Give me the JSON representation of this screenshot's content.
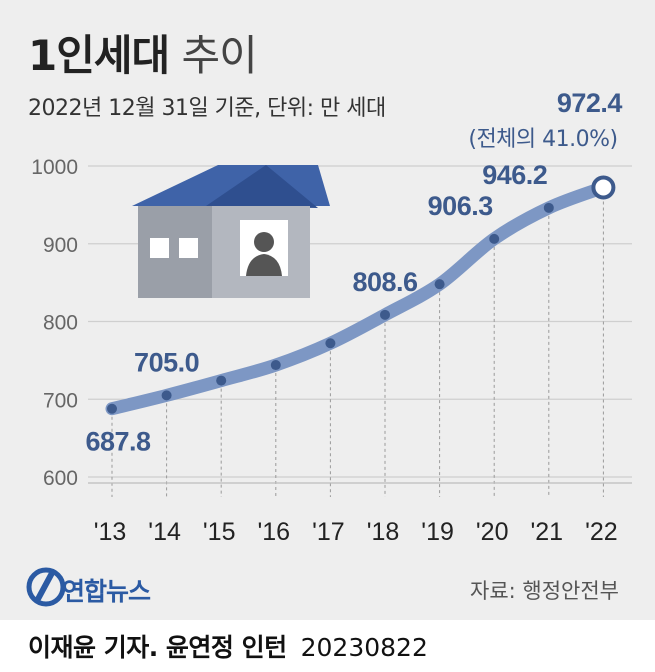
{
  "header": {
    "title_bold": "1인세대",
    "title_rest": "추이",
    "subtitle": "2022년 12월 31일 기준, 단위: 만 세대"
  },
  "colors": {
    "panel_bg": "#eeeeee",
    "line": "#7d97c4",
    "point": "#3d5a8c",
    "label": "#3d5a8c",
    "house_roof": "#3f63a8",
    "house_wall": "#9a9fa8"
  },
  "chart_data": {
    "type": "line",
    "categories": [
      "'13",
      "'14",
      "'15",
      "'16",
      "'17",
      "'18",
      "'19",
      "'20",
      "'21",
      "'22"
    ],
    "values": [
      687.8,
      705.0,
      724.0,
      744.0,
      772.0,
      808.6,
      848.0,
      906.3,
      946.2,
      972.4
    ],
    "y_ticks": [
      "600",
      "700",
      "800",
      "900",
      "1000"
    ],
    "ylim": [
      600,
      1000
    ],
    "grid": "horizontal",
    "data_labels": [
      {
        "index": 0,
        "text": "687.8",
        "place": "below"
      },
      {
        "index": 1,
        "text": "705.0",
        "place": "above"
      },
      {
        "index": 5,
        "text": "808.6",
        "place": "above"
      },
      {
        "index": 7,
        "text": "906.3",
        "place": "above"
      },
      {
        "index": 8,
        "text": "946.2",
        "place": "above"
      },
      {
        "index": 9,
        "text": "972.4",
        "place": "top"
      }
    ],
    "annotation": "(전체의 41.0%)"
  },
  "footer": {
    "source": "자료: 행정안전부",
    "logo_text": "연합뉴스",
    "credit_name": "이재윤 기자. 윤연정 인턴",
    "credit_date": "20230822"
  }
}
